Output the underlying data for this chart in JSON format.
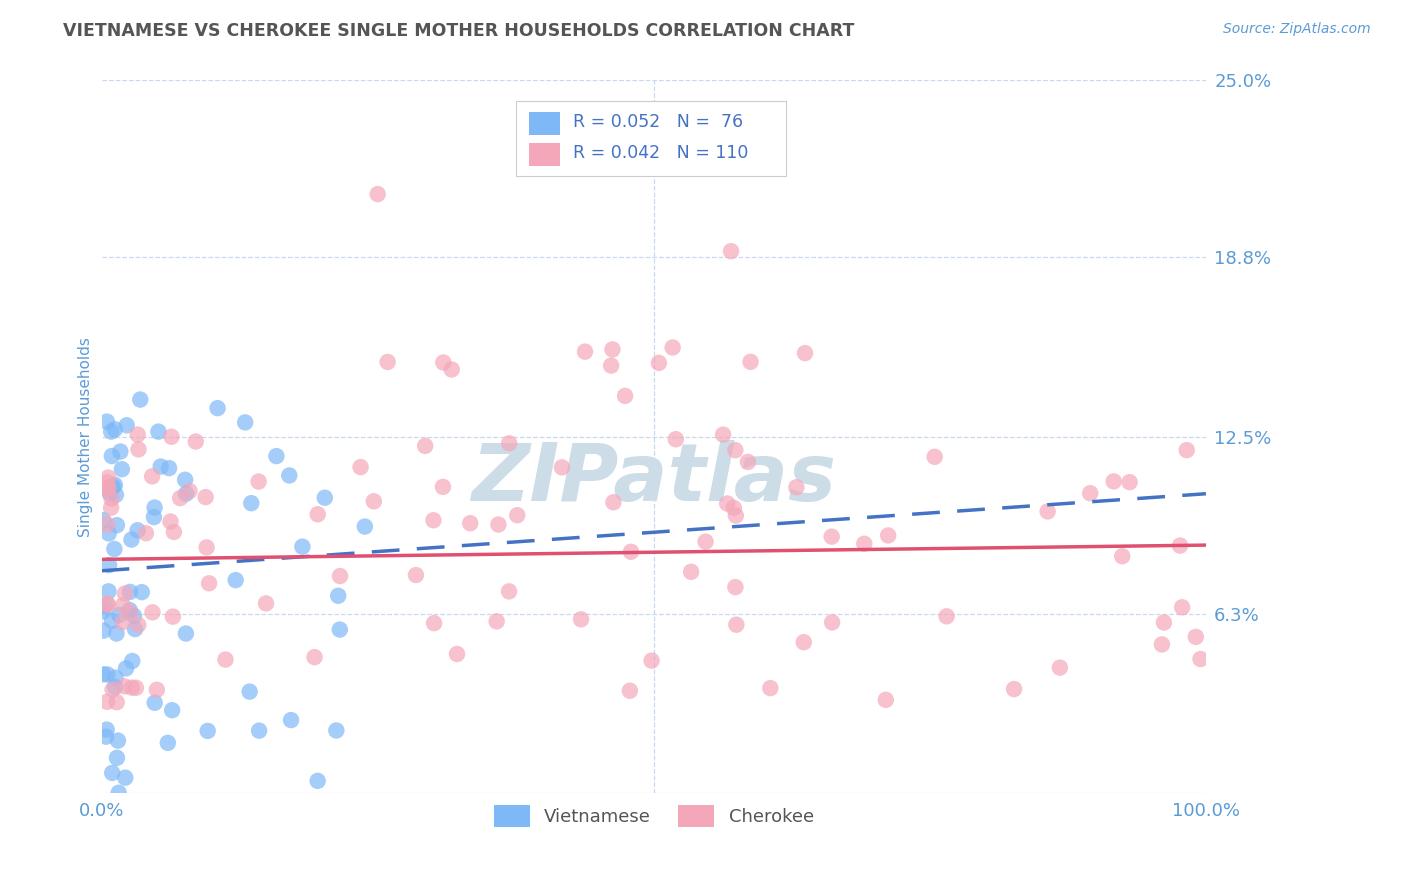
{
  "title": "VIETNAMESE VS CHEROKEE SINGLE MOTHER HOUSEHOLDS CORRELATION CHART",
  "source": "Source: ZipAtlas.com",
  "ylabel": "Single Mother Households",
  "xmin": 0.0,
  "xmax": 100.0,
  "ymin": 0.0,
  "ymax": 25.0,
  "yticks": [
    0.0,
    6.3,
    12.5,
    18.8,
    25.0
  ],
  "ytick_labels": [
    "",
    "6.3%",
    "12.5%",
    "18.8%",
    "25.0%"
  ],
  "xtick_labels": [
    "0.0%",
    "100.0%"
  ],
  "background_color": "#ffffff",
  "color_vietnamese": "#7eb8f7",
  "color_cherokee": "#f4a7b9",
  "color_trend_vietnamese": "#4472c4",
  "color_trend_cherokee": "#e05070",
  "title_color": "#555555",
  "axis_label_color": "#5b9bd5",
  "tick_color": "#5b9bd5",
  "grid_color": "#c8d8ee",
  "legend_text_color": "#4472c4",
  "watermark_color": "#ccdde8",
  "viet_trend_start": 7.8,
  "viet_trend_end": 10.5,
  "cher_trend_start": 8.2,
  "cher_trend_end": 8.7
}
